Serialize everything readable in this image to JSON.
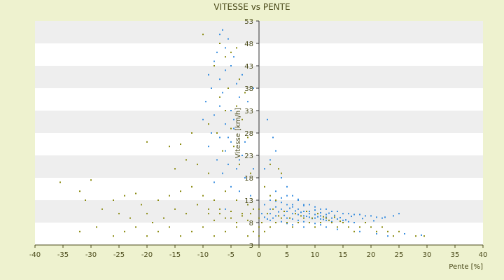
{
  "chart_data": {
    "type": "scatter",
    "title": "VITESSE vs PENTE",
    "xlabel": "Pente [%]",
    "ylabel": "Vitesse [km/h]",
    "xlim": [
      -40,
      40
    ],
    "ylim": [
      3,
      53
    ],
    "xticks": [
      -40,
      -35,
      -30,
      -25,
      -20,
      -15,
      -10,
      -5,
      0,
      5,
      10,
      15,
      20,
      25,
      30,
      35,
      40
    ],
    "yticks": [
      3,
      8,
      13,
      18,
      23,
      28,
      33,
      38,
      43,
      48,
      53
    ],
    "grid": "alternating horizontal bands",
    "legend": "none",
    "colors": {
      "series_a": "#3a8fe0",
      "series_b": "#8a8a10",
      "band": "#eeeeee",
      "background": "#eef2cf",
      "axis": "#4a4a1a"
    },
    "series": [
      {
        "color": "#3a8fe0",
        "points": [
          [
            -6.5,
            51
          ],
          [
            -7,
            50
          ],
          [
            -5.5,
            49
          ],
          [
            -6,
            47
          ],
          [
            -7.5,
            46
          ],
          [
            -4.5,
            45
          ],
          [
            -8,
            44
          ],
          [
            -5,
            43
          ],
          [
            -6,
            42
          ],
          [
            -9,
            41
          ],
          [
            -7,
            40
          ],
          [
            -4,
            39
          ],
          [
            -8.5,
            38
          ],
          [
            -6.5,
            37
          ],
          [
            -3.5,
            36
          ],
          [
            -9.5,
            35
          ],
          [
            -7,
            34
          ],
          [
            -5,
            33
          ],
          [
            -8,
            32
          ],
          [
            -10,
            31
          ],
          [
            -6,
            30
          ],
          [
            -4.5,
            29
          ],
          [
            -8.5,
            28
          ],
          [
            -7,
            27
          ],
          [
            -5,
            26
          ],
          [
            -9,
            25
          ],
          [
            -6,
            24
          ],
          [
            -3,
            23
          ],
          [
            -7.5,
            22
          ],
          [
            -5.5,
            21
          ],
          [
            -4,
            20
          ],
          [
            -6.5,
            19
          ],
          [
            -2.5,
            18
          ],
          [
            -8,
            17
          ],
          [
            -5,
            16
          ],
          [
            -3.5,
            15
          ],
          [
            -1.5,
            14
          ],
          [
            -4,
            13
          ],
          [
            -2,
            12
          ],
          [
            -6,
            11
          ],
          [
            -3,
            41
          ],
          [
            -2,
            35
          ],
          [
            -1,
            38
          ],
          [
            -4.5,
            31
          ],
          [
            -5.5,
            27
          ],
          [
            -2.5,
            26
          ],
          [
            -3.5,
            22
          ],
          [
            -1,
            20
          ],
          [
            1,
            20
          ],
          [
            2,
            22
          ],
          [
            3,
            24
          ],
          [
            2.5,
            27
          ],
          [
            1.5,
            31
          ],
          [
            4,
            18
          ],
          [
            5,
            16
          ],
          [
            3,
            15
          ],
          [
            6,
            14
          ],
          [
            2,
            13
          ],
          [
            7,
            13
          ],
          [
            4,
            12.5
          ],
          [
            8,
            12
          ],
          [
            5,
            12
          ],
          [
            9,
            12
          ],
          [
            10,
            11.5
          ],
          [
            6,
            11.5
          ],
          [
            3,
            11.5
          ],
          [
            11,
            11
          ],
          [
            12,
            11
          ],
          [
            7,
            11
          ],
          [
            4,
            11
          ],
          [
            13,
            10.5
          ],
          [
            14,
            10.5
          ],
          [
            8,
            10.5
          ],
          [
            5,
            10.5
          ],
          [
            15,
            10
          ],
          [
            16,
            10
          ],
          [
            9,
            10
          ],
          [
            6,
            10
          ],
          [
            2,
            10
          ],
          [
            17,
            9.8
          ],
          [
            18,
            9.8
          ],
          [
            10,
            9.8
          ],
          [
            7,
            9.8
          ],
          [
            19,
            9.5
          ],
          [
            20,
            9.5
          ],
          [
            11,
            9.5
          ],
          [
            8,
            9.5
          ],
          [
            3,
            9.5
          ],
          [
            21,
            9.2
          ],
          [
            12,
            9.2
          ],
          [
            9,
            9.2
          ],
          [
            1,
            9.2
          ],
          [
            22,
            9
          ],
          [
            13,
            9
          ],
          [
            10,
            9
          ],
          [
            5,
            9
          ],
          [
            14,
            8.8
          ],
          [
            11,
            8.8
          ],
          [
            6,
            8.8
          ],
          [
            15,
            8.5
          ],
          [
            12,
            8.5
          ],
          [
            7,
            8.5
          ],
          [
            2,
            8.5
          ],
          [
            16,
            8.2
          ],
          [
            13,
            8.2
          ],
          [
            8,
            8.2
          ],
          [
            4,
            8.2
          ],
          [
            17,
            8
          ],
          [
            9,
            8
          ],
          [
            10,
            7.8
          ],
          [
            5,
            7.8
          ],
          [
            11,
            7.5
          ],
          [
            6,
            7.5
          ],
          [
            12,
            7
          ],
          [
            8,
            7
          ],
          [
            14,
            6.5
          ],
          [
            18,
            6
          ],
          [
            21,
            5.5
          ],
          [
            23,
            5
          ],
          [
            25,
            10
          ],
          [
            24,
            9.5
          ],
          [
            1,
            12
          ],
          [
            0.5,
            10
          ],
          [
            2,
            11
          ],
          [
            3,
            12.8
          ],
          [
            4,
            13.5
          ],
          [
            5,
            14
          ],
          [
            6,
            12
          ],
          [
            7,
            13.2
          ],
          [
            8,
            11.8
          ],
          [
            9,
            10.5
          ],
          [
            10,
            10.8
          ],
          [
            11,
            10.2
          ],
          [
            12,
            9.8
          ],
          [
            6.5,
            10.6
          ],
          [
            4.5,
            9.6
          ],
          [
            3.5,
            10.4
          ],
          [
            2.5,
            9
          ],
          [
            1.5,
            8.8
          ],
          [
            5.5,
            11.2
          ],
          [
            7.5,
            10.3
          ],
          [
            8.5,
            9.4
          ],
          [
            9.5,
            8.9
          ],
          [
            10.5,
            9.3
          ],
          [
            11.5,
            8.7
          ],
          [
            12.5,
            10.1
          ],
          [
            13.5,
            9.6
          ],
          [
            14.5,
            9.1
          ],
          [
            15.5,
            8.6
          ],
          [
            16.5,
            9.4
          ],
          [
            18.5,
            8.9
          ],
          [
            20.5,
            8.4
          ],
          [
            22.5,
            9.2
          ],
          [
            26,
            5.5
          ],
          [
            29,
            5.2
          ]
        ]
      },
      {
        "color": "#8a8a10",
        "points": [
          [
            -10,
            50
          ],
          [
            -7,
            48
          ],
          [
            -5,
            46
          ],
          [
            -4,
            47
          ],
          [
            -6,
            45
          ],
          [
            -8,
            43
          ],
          [
            -3.5,
            40
          ],
          [
            -5.5,
            38
          ],
          [
            -2.5,
            37
          ],
          [
            -7,
            36
          ],
          [
            -4,
            34
          ],
          [
            -6,
            33
          ],
          [
            -3,
            31
          ],
          [
            -9,
            30
          ],
          [
            -5,
            29
          ],
          [
            -7.5,
            28
          ],
          [
            -2,
            27
          ],
          [
            -4.5,
            25
          ],
          [
            -6.5,
            24
          ],
          [
            -3.5,
            21
          ],
          [
            -1.5,
            19
          ],
          [
            -35.5,
            17
          ],
          [
            -30,
            17.5
          ],
          [
            -32,
            15
          ],
          [
            -31,
            13
          ],
          [
            -26,
            13
          ],
          [
            -24,
            14
          ],
          [
            -22,
            14.5
          ],
          [
            -21,
            12
          ],
          [
            -18,
            13
          ],
          [
            -16,
            14
          ],
          [
            -14,
            15
          ],
          [
            -12,
            16
          ],
          [
            -10,
            14
          ],
          [
            -8,
            13
          ],
          [
            -6,
            15
          ],
          [
            -4,
            13
          ],
          [
            -2,
            12
          ],
          [
            -28,
            11
          ],
          [
            -25,
            10
          ],
          [
            -23,
            9
          ],
          [
            -20,
            10
          ],
          [
            -19,
            8
          ],
          [
            -17,
            9
          ],
          [
            -15,
            11
          ],
          [
            -13,
            10
          ],
          [
            -11,
            12
          ],
          [
            -9,
            10
          ],
          [
            -7,
            11
          ],
          [
            -5,
            9
          ],
          [
            -3,
            10
          ],
          [
            -1,
            11
          ],
          [
            -32,
            6
          ],
          [
            -29,
            7
          ],
          [
            -26,
            5
          ],
          [
            -24,
            6
          ],
          [
            -22,
            7
          ],
          [
            -20,
            5
          ],
          [
            -18,
            6
          ],
          [
            -16,
            7
          ],
          [
            -14,
            5
          ],
          [
            -12,
            6
          ],
          [
            -10,
            7
          ],
          [
            -8,
            5
          ],
          [
            -6,
            6
          ],
          [
            -4,
            7
          ],
          [
            -2,
            5
          ],
          [
            -1,
            6
          ],
          [
            -20,
            26
          ],
          [
            -16,
            25
          ],
          [
            -14,
            25.5
          ],
          [
            -12,
            28
          ],
          [
            -15,
            20
          ],
          [
            -13,
            22
          ],
          [
            -11,
            21
          ],
          [
            -9,
            19
          ],
          [
            0,
            5
          ],
          [
            0,
            7
          ],
          [
            0,
            9
          ],
          [
            0,
            11
          ],
          [
            0.5,
            8
          ],
          [
            1,
            6
          ],
          [
            2,
            7
          ],
          [
            3,
            8
          ],
          [
            4,
            9
          ],
          [
            5,
            8
          ],
          [
            6,
            7
          ],
          [
            7,
            8
          ],
          [
            8,
            9
          ],
          [
            9,
            8
          ],
          [
            10,
            7
          ],
          [
            11,
            8
          ],
          [
            12,
            9
          ],
          [
            13,
            8
          ],
          [
            14,
            7
          ],
          [
            15,
            8
          ],
          [
            16,
            7
          ],
          [
            17,
            6
          ],
          [
            18,
            7
          ],
          [
            19,
            8
          ],
          [
            20,
            7
          ],
          [
            21,
            6
          ],
          [
            22,
            7
          ],
          [
            23,
            6
          ],
          [
            24,
            5
          ],
          [
            25,
            6
          ],
          [
            28,
            5
          ],
          [
            29.5,
            5
          ],
          [
            1.5,
            10
          ],
          [
            2.5,
            11
          ],
          [
            3.5,
            9.5
          ],
          [
            4.5,
            10.5
          ],
          [
            5.5,
            9
          ],
          [
            6.5,
            10
          ],
          [
            7.5,
            9.5
          ],
          [
            8.5,
            10.5
          ],
          [
            9.5,
            9
          ],
          [
            10.5,
            10
          ],
          [
            11.5,
            9.3
          ],
          [
            12.5,
            8.5
          ],
          [
            13.5,
            9.2
          ],
          [
            14.5,
            8.3
          ],
          [
            2,
            21
          ],
          [
            3.5,
            20
          ],
          [
            4,
            19
          ],
          [
            1,
            16
          ],
          [
            2,
            14
          ],
          [
            3,
            13
          ],
          [
            -2,
            8.5
          ],
          [
            -3,
            9.5
          ],
          [
            -4,
            8
          ],
          [
            -5,
            10.5
          ],
          [
            -6,
            9
          ],
          [
            -7,
            10
          ],
          [
            -8,
            8.5
          ],
          [
            -9,
            11
          ],
          [
            -1.5,
            10
          ]
        ]
      }
    ]
  }
}
